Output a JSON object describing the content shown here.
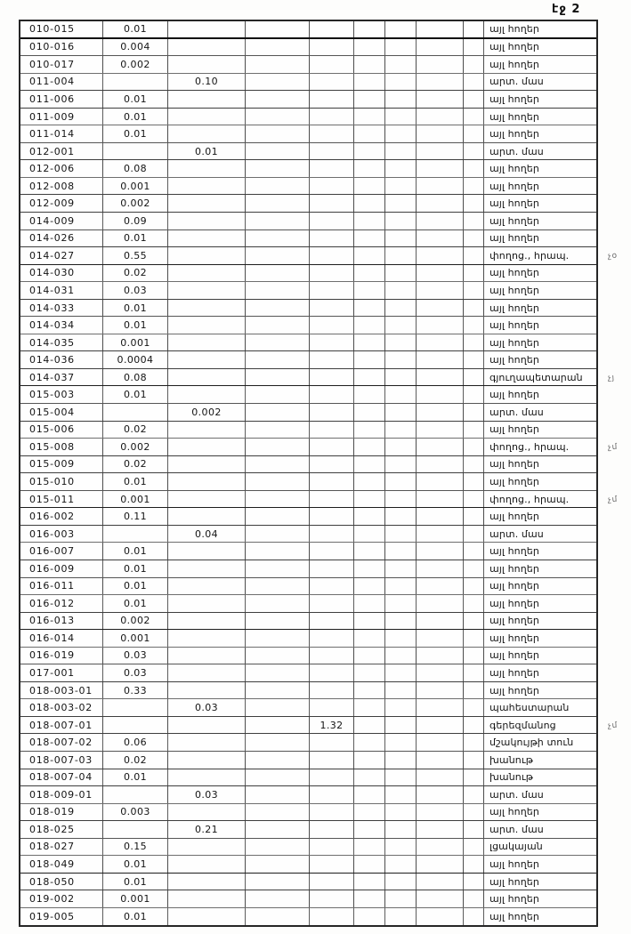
{
  "page": {
    "label": "էջ 2"
  },
  "table": {
    "rows": [
      {
        "id": "010-015",
        "a": "0.01",
        "b": "",
        "d": "",
        "use": "այլ հողեր",
        "note": ""
      },
      {
        "id": "010-016",
        "a": "0.004",
        "b": "",
        "d": "",
        "use": "այլ հողեր",
        "note": ""
      },
      {
        "id": "010-017",
        "a": "0.002",
        "b": "",
        "d": "",
        "use": "այլ հողեր",
        "note": ""
      },
      {
        "id": "011-004",
        "a": "",
        "b": "0.10",
        "d": "",
        "use": "արտ. մաս",
        "note": ""
      },
      {
        "id": "011-006",
        "a": "0.01",
        "b": "",
        "d": "",
        "use": "այլ հողեր",
        "note": ""
      },
      {
        "id": "011-009",
        "a": "0.01",
        "b": "",
        "d": "",
        "use": "այլ հողեր",
        "note": ""
      },
      {
        "id": "011-014",
        "a": "0.01",
        "b": "",
        "d": "",
        "use": "այլ հողեր",
        "note": ""
      },
      {
        "id": "012-001",
        "a": "",
        "b": "0.01",
        "d": "",
        "use": "արտ. մաս",
        "note": ""
      },
      {
        "id": "012-006",
        "a": "0.08",
        "b": "",
        "d": "",
        "use": "այլ հողեր",
        "note": ""
      },
      {
        "id": "012-008",
        "a": "0.001",
        "b": "",
        "d": "",
        "use": "այլ հողեր",
        "note": ""
      },
      {
        "id": "012-009",
        "a": "0.002",
        "b": "",
        "d": "",
        "use": "այլ հողեր",
        "note": ""
      },
      {
        "id": "014-009",
        "a": "0.09",
        "b": "",
        "d": "",
        "use": "այլ հողեր",
        "note": ""
      },
      {
        "id": "014-026",
        "a": "0.01",
        "b": "",
        "d": "",
        "use": "այլ հողեր",
        "note": ""
      },
      {
        "id": "014-027",
        "a": "0.55",
        "b": "",
        "d": "",
        "use": "փողոց., հրապ.",
        "note": "չօ"
      },
      {
        "id": "014-030",
        "a": "0.02",
        "b": "",
        "d": "",
        "use": "այլ հողեր",
        "note": ""
      },
      {
        "id": "014-031",
        "a": "0.03",
        "b": "",
        "d": "",
        "use": "այլ հողեր",
        "note": ""
      },
      {
        "id": "014-033",
        "a": "0.01",
        "b": "",
        "d": "",
        "use": "այլ հողեր",
        "note": ""
      },
      {
        "id": "014-034",
        "a": "0.01",
        "b": "",
        "d": "",
        "use": "այլ հողեր",
        "note": ""
      },
      {
        "id": "014-035",
        "a": "0.001",
        "b": "",
        "d": "",
        "use": "այլ հողեր",
        "note": ""
      },
      {
        "id": "014-036",
        "a": "0.0004",
        "b": "",
        "d": "",
        "use": "այլ հողեր",
        "note": ""
      },
      {
        "id": "014-037",
        "a": "0.08",
        "b": "",
        "d": "",
        "use": "գյուղապետարան",
        "note": "չյ"
      },
      {
        "id": "015-003",
        "a": "0.01",
        "b": "",
        "d": "",
        "use": "այլ հողեր",
        "note": ""
      },
      {
        "id": "015-004",
        "a": "",
        "b": "0.002",
        "d": "",
        "use": "արտ. մաս",
        "note": ""
      },
      {
        "id": "015-006",
        "a": "0.02",
        "b": "",
        "d": "",
        "use": "այլ հողեր",
        "note": ""
      },
      {
        "id": "015-008",
        "a": "0.002",
        "b": "",
        "d": "",
        "use": "փողոց., հրապ.",
        "note": "չմ"
      },
      {
        "id": "015-009",
        "a": "0.02",
        "b": "",
        "d": "",
        "use": "այլ հողեր",
        "note": ""
      },
      {
        "id": "015-010",
        "a": "0.01",
        "b": "",
        "d": "",
        "use": "այլ հողեր",
        "note": ""
      },
      {
        "id": "015-011",
        "a": "0.001",
        "b": "",
        "d": "",
        "use": "փողոց., հրապ.",
        "note": "չմ"
      },
      {
        "id": "016-002",
        "a": "0.11",
        "b": "",
        "d": "",
        "use": "այլ հողեր",
        "note": ""
      },
      {
        "id": "016-003",
        "a": "",
        "b": "0.04",
        "d": "",
        "use": "արտ. մաս",
        "note": ""
      },
      {
        "id": "016-007",
        "a": "0.01",
        "b": "",
        "d": "",
        "use": "այլ հողեր",
        "note": ""
      },
      {
        "id": "016-009",
        "a": "0.01",
        "b": "",
        "d": "",
        "use": "այլ հողեր",
        "note": ""
      },
      {
        "id": "016-011",
        "a": "0.01",
        "b": "",
        "d": "",
        "use": "այլ հողեր",
        "note": ""
      },
      {
        "id": "016-012",
        "a": "0.01",
        "b": "",
        "d": "",
        "use": "այլ հողեր",
        "note": ""
      },
      {
        "id": "016-013",
        "a": "0.002",
        "b": "",
        "d": "",
        "use": "այլ հողեր",
        "note": ""
      },
      {
        "id": "016-014",
        "a": "0.001",
        "b": "",
        "d": "",
        "use": "այլ հողեր",
        "note": ""
      },
      {
        "id": "016-019",
        "a": "0.03",
        "b": "",
        "d": "",
        "use": "այլ հողեր",
        "note": ""
      },
      {
        "id": "017-001",
        "a": "0.03",
        "b": "",
        "d": "",
        "use": "այլ հողեր",
        "note": ""
      },
      {
        "id": "018-003-01",
        "a": "0.33",
        "b": "",
        "d": "",
        "use": "այլ հողեր",
        "note": ""
      },
      {
        "id": "018-003-02",
        "a": "",
        "b": "0.03",
        "d": "",
        "use": "պահեստարան",
        "note": ""
      },
      {
        "id": "018-007-01",
        "a": "",
        "b": "",
        "d": "1.32",
        "use": "գերեզմանոց",
        "note": "չմ"
      },
      {
        "id": "018-007-02",
        "a": "0.06",
        "b": "",
        "d": "",
        "use": "մշակույթի տուն",
        "note": ""
      },
      {
        "id": "018-007-03",
        "a": "0.02",
        "b": "",
        "d": "",
        "use": "խանութ",
        "note": ""
      },
      {
        "id": "018-007-04",
        "a": "0.01",
        "b": "",
        "d": "",
        "use": "խանութ",
        "note": ""
      },
      {
        "id": "018-009-01",
        "a": "",
        "b": "0.03",
        "d": "",
        "use": "արտ. մաս",
        "note": ""
      },
      {
        "id": "018-019",
        "a": "0.003",
        "b": "",
        "d": "",
        "use": "այլ հողեր",
        "note": ""
      },
      {
        "id": "018-025",
        "a": "",
        "b": "0.21",
        "d": "",
        "use": "արտ. մաս",
        "note": ""
      },
      {
        "id": "018-027",
        "a": "0.15",
        "b": "",
        "d": "",
        "use": "լցակայան",
        "note": ""
      },
      {
        "id": "018-049",
        "a": "0.01",
        "b": "",
        "d": "",
        "use": "այլ հողեր",
        "note": ""
      },
      {
        "id": "018-050",
        "a": "0.01",
        "b": "",
        "d": "",
        "use": "այլ հողեր",
        "note": ""
      },
      {
        "id": "019-002",
        "a": "0.001",
        "b": "",
        "d": "",
        "use": "այլ հողեր",
        "note": ""
      },
      {
        "id": "019-005",
        "a": "0.01",
        "b": "",
        "d": "",
        "use": "այլ հողեր",
        "note": ""
      }
    ]
  }
}
